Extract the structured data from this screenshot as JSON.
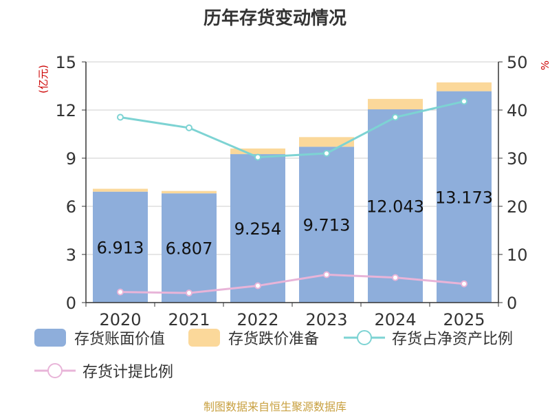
{
  "chart_data": {
    "type": "bar",
    "title": "历年存货变动情况",
    "categories": [
      "2020",
      "2021",
      "2022",
      "2023",
      "2024",
      "2025"
    ],
    "series": [
      {
        "name": "存货账面价值",
        "kind": "bar",
        "axis": "left",
        "color": "#8eaedb",
        "values": [
          6.913,
          6.807,
          9.254,
          9.713,
          12.043,
          13.173
        ]
      },
      {
        "name": "存货跌价准备",
        "kind": "bar",
        "axis": "left",
        "stack": true,
        "color": "#fbd89a",
        "values": [
          0.18,
          0.15,
          0.35,
          0.6,
          0.65,
          0.55
        ]
      },
      {
        "name": "存货占净资产比例",
        "kind": "line",
        "axis": "right",
        "color": "#7dd3d3",
        "values": [
          38.5,
          36.3,
          30.2,
          31.0,
          38.5,
          41.8
        ]
      },
      {
        "name": "存货计提比例",
        "kind": "line",
        "axis": "right",
        "color": "#e8b4d8",
        "values": [
          2.2,
          2.0,
          3.5,
          5.8,
          5.2,
          3.9
        ]
      }
    ],
    "bar_labels": [
      "6.913",
      "6.807",
      "9.254",
      "9.713",
      "12.043",
      "13.173"
    ],
    "y_left": {
      "label": "(亿元)",
      "ylim": [
        0,
        15
      ],
      "ticks": [
        "0",
        "3",
        "6",
        "9",
        "12",
        "15"
      ]
    },
    "y_right": {
      "label": "%",
      "ylim": [
        0,
        50
      ],
      "ticks": [
        "0",
        "10",
        "20",
        "30",
        "40",
        "50"
      ]
    },
    "grid": true,
    "legend_position": "bottom"
  },
  "source_note": "制图数据来自恒生聚源数据库"
}
